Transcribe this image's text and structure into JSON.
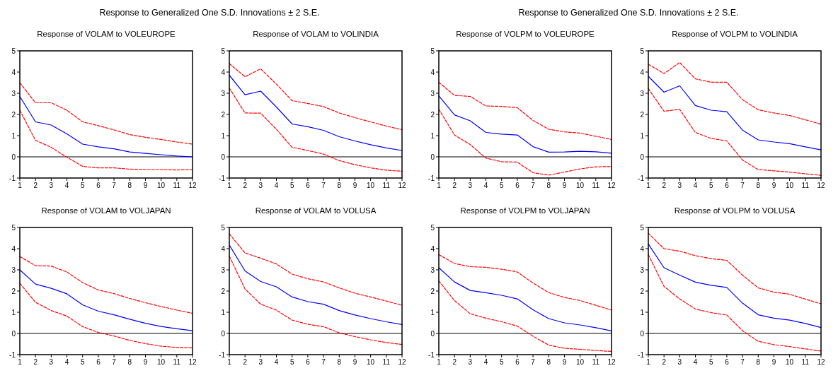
{
  "chart_data": [
    {
      "type": "line",
      "title": "Response of VOLAM to VOLEUROPE",
      "annotations": [
        "Response to Generalized One S.D. Innovations ± 2 S.E."
      ],
      "x": [
        1,
        2,
        3,
        4,
        5,
        6,
        7,
        8,
        9,
        10,
        11,
        12
      ],
      "xlim": [
        1,
        12
      ],
      "xticks": [
        1,
        2,
        3,
        4,
        5,
        6,
        7,
        8,
        9,
        10,
        11,
        12
      ],
      "ylim": [
        -1,
        5
      ],
      "yticks": [
        -1,
        0,
        1,
        2,
        3,
        4,
        5
      ],
      "ref_lines": [
        {
          "axis": "y",
          "value": 0,
          "color": "#000000"
        }
      ],
      "series": [
        {
          "color": "#0000ff",
          "line_style": "solid",
          "values": [
            2.85,
            1.65,
            1.5,
            1.08,
            0.6,
            0.47,
            0.38,
            0.23,
            0.16,
            0.1,
            0.04,
            0.0
          ]
        },
        {
          "color": "#ff0000",
          "line_style": "dashed",
          "values": [
            3.5,
            2.55,
            2.55,
            2.2,
            1.65,
            1.47,
            1.27,
            1.05,
            0.92,
            0.82,
            0.7,
            0.6
          ]
        },
        {
          "color": "#ff0000",
          "line_style": "dashed",
          "values": [
            2.2,
            0.78,
            0.45,
            -0.02,
            -0.45,
            -0.52,
            -0.52,
            -0.58,
            -0.6,
            -0.6,
            -0.62,
            -0.6
          ]
        }
      ]
    },
    {
      "type": "line",
      "title": "Response of VOLAM to VOLINDIA",
      "x": [
        1,
        2,
        3,
        4,
        5,
        6,
        7,
        8,
        9,
        10,
        11,
        12
      ],
      "xlim": [
        1,
        12
      ],
      "xticks": [
        1,
        2,
        3,
        4,
        5,
        6,
        7,
        8,
        9,
        10,
        11,
        12
      ],
      "ylim": [
        -1,
        5
      ],
      "yticks": [
        -1,
        0,
        1,
        2,
        3,
        4,
        5
      ],
      "ref_lines": [
        {
          "axis": "y",
          "value": 0,
          "color": "#000000"
        }
      ],
      "series": [
        {
          "color": "#0000ff",
          "line_style": "solid",
          "values": [
            3.85,
            2.93,
            3.1,
            2.35,
            1.55,
            1.42,
            1.25,
            0.95,
            0.75,
            0.57,
            0.42,
            0.3
          ]
        },
        {
          "color": "#ff0000",
          "line_style": "dashed",
          "values": [
            4.4,
            3.78,
            4.15,
            3.43,
            2.65,
            2.52,
            2.37,
            2.07,
            1.85,
            1.65,
            1.45,
            1.28
          ]
        },
        {
          "color": "#ff0000",
          "line_style": "dashed",
          "values": [
            3.25,
            2.07,
            2.06,
            1.3,
            0.45,
            0.3,
            0.13,
            -0.18,
            -0.37,
            -0.52,
            -0.63,
            -0.68
          ]
        }
      ]
    },
    {
      "type": "line",
      "title": "Response of VOLPM to VOLEUROPE",
      "annotations": [
        "Response to Generalized One S.D. Innovations ± 2 S.E."
      ],
      "x": [
        1,
        2,
        3,
        4,
        5,
        6,
        7,
        8,
        9,
        10,
        11,
        12
      ],
      "xlim": [
        1,
        12
      ],
      "xticks": [
        1,
        2,
        3,
        4,
        5,
        6,
        7,
        8,
        9,
        10,
        11,
        12
      ],
      "ylim": [
        -1,
        5
      ],
      "yticks": [
        -1,
        0,
        1,
        2,
        3,
        4,
        5
      ],
      "ref_lines": [
        {
          "axis": "y",
          "value": 0,
          "color": "#000000"
        }
      ],
      "series": [
        {
          "color": "#0000ff",
          "line_style": "solid",
          "values": [
            2.88,
            1.98,
            1.7,
            1.15,
            1.07,
            1.03,
            0.48,
            0.22,
            0.23,
            0.26,
            0.24,
            0.17
          ]
        },
        {
          "color": "#ff0000",
          "line_style": "dashed",
          "values": [
            3.52,
            2.9,
            2.85,
            2.4,
            2.38,
            2.32,
            1.72,
            1.3,
            1.18,
            1.12,
            0.97,
            0.82
          ]
        },
        {
          "color": "#ff0000",
          "line_style": "dashed",
          "values": [
            2.25,
            1.03,
            0.58,
            -0.06,
            -0.23,
            -0.25,
            -0.75,
            -0.86,
            -0.72,
            -0.57,
            -0.47,
            -0.46
          ]
        }
      ]
    },
    {
      "type": "line",
      "title": "Response of VOLPM to VOLINDIA",
      "x": [
        1,
        2,
        3,
        4,
        5,
        6,
        7,
        8,
        9,
        10,
        11,
        12
      ],
      "xlim": [
        1,
        12
      ],
      "xticks": [
        1,
        2,
        3,
        4,
        5,
        6,
        7,
        8,
        9,
        10,
        11,
        12
      ],
      "ylim": [
        -1,
        5
      ],
      "yticks": [
        -1,
        0,
        1,
        2,
        3,
        4,
        5
      ],
      "ref_lines": [
        {
          "axis": "y",
          "value": 0,
          "color": "#000000"
        }
      ],
      "series": [
        {
          "color": "#0000ff",
          "line_style": "solid",
          "values": [
            3.8,
            3.05,
            3.35,
            2.42,
            2.2,
            2.13,
            1.26,
            0.8,
            0.7,
            0.62,
            0.47,
            0.33
          ]
        },
        {
          "color": "#ff0000",
          "line_style": "dashed",
          "values": [
            4.37,
            3.93,
            4.45,
            3.68,
            3.52,
            3.52,
            2.7,
            2.22,
            2.07,
            1.95,
            1.75,
            1.54
          ]
        },
        {
          "color": "#ff0000",
          "line_style": "dashed",
          "values": [
            3.22,
            2.15,
            2.24,
            1.15,
            0.87,
            0.75,
            -0.15,
            -0.6,
            -0.66,
            -0.72,
            -0.8,
            -0.87
          ]
        }
      ]
    },
    {
      "type": "line",
      "title": "Response of VOLAM to VOLJAPAN",
      "x": [
        1,
        2,
        3,
        4,
        5,
        6,
        7,
        8,
        9,
        10,
        11,
        12
      ],
      "xlim": [
        1,
        12
      ],
      "xticks": [
        1,
        2,
        3,
        4,
        5,
        6,
        7,
        8,
        9,
        10,
        11,
        12
      ],
      "ylim": [
        -1,
        5
      ],
      "yticks": [
        -1,
        0,
        1,
        2,
        3,
        4,
        5
      ],
      "ref_lines": [
        {
          "axis": "y",
          "value": 0,
          "color": "#000000"
        }
      ],
      "series": [
        {
          "color": "#0000ff",
          "line_style": "solid",
          "values": [
            3.0,
            2.33,
            2.13,
            1.87,
            1.35,
            1.05,
            0.88,
            0.67,
            0.48,
            0.33,
            0.22,
            0.13
          ]
        },
        {
          "color": "#ff0000",
          "line_style": "dashed",
          "values": [
            3.63,
            3.2,
            3.18,
            2.9,
            2.4,
            2.05,
            1.88,
            1.65,
            1.45,
            1.27,
            1.1,
            0.95
          ]
        },
        {
          "color": "#ff0000",
          "line_style": "dashed",
          "values": [
            2.37,
            1.47,
            1.08,
            0.82,
            0.32,
            0.05,
            -0.12,
            -0.33,
            -0.48,
            -0.6,
            -0.66,
            -0.68
          ]
        }
      ]
    },
    {
      "type": "line",
      "title": "Response of VOLAM to VOLUSA",
      "x": [
        1,
        2,
        3,
        4,
        5,
        6,
        7,
        8,
        9,
        10,
        11,
        12
      ],
      "xlim": [
        1,
        12
      ],
      "xticks": [
        1,
        2,
        3,
        4,
        5,
        6,
        7,
        8,
        9,
        10,
        11,
        12
      ],
      "ylim": [
        -1,
        5
      ],
      "yticks": [
        -1,
        0,
        1,
        2,
        3,
        4,
        5
      ],
      "ref_lines": [
        {
          "axis": "y",
          "value": 0,
          "color": "#000000"
        }
      ],
      "series": [
        {
          "color": "#0000ff",
          "line_style": "solid",
          "values": [
            4.17,
            2.95,
            2.45,
            2.2,
            1.72,
            1.5,
            1.38,
            1.08,
            0.87,
            0.7,
            0.55,
            0.42
          ]
        },
        {
          "color": "#ff0000",
          "line_style": "dashed",
          "values": [
            4.7,
            3.8,
            3.55,
            3.28,
            2.8,
            2.58,
            2.43,
            2.15,
            1.9,
            1.72,
            1.53,
            1.33
          ]
        },
        {
          "color": "#ff0000",
          "line_style": "dashed",
          "values": [
            3.65,
            2.1,
            1.38,
            1.1,
            0.63,
            0.43,
            0.32,
            0.03,
            -0.15,
            -0.3,
            -0.43,
            -0.52
          ]
        }
      ]
    },
    {
      "type": "line",
      "title": "Response of VOLPM to VOLJAPAN",
      "x": [
        1,
        2,
        3,
        4,
        5,
        6,
        7,
        8,
        9,
        10,
        11,
        12
      ],
      "xlim": [
        1,
        12
      ],
      "xticks": [
        1,
        2,
        3,
        4,
        5,
        6,
        7,
        8,
        9,
        10,
        11,
        12
      ],
      "ylim": [
        -1,
        5
      ],
      "yticks": [
        -1,
        0,
        1,
        2,
        3,
        4,
        5
      ],
      "ref_lines": [
        {
          "axis": "y",
          "value": 0,
          "color": "#000000"
        }
      ],
      "series": [
        {
          "color": "#0000ff",
          "line_style": "solid",
          "values": [
            3.1,
            2.43,
            2.03,
            1.92,
            1.8,
            1.63,
            1.12,
            0.7,
            0.5,
            0.4,
            0.27,
            0.12
          ]
        },
        {
          "color": "#ff0000",
          "line_style": "dashed",
          "values": [
            3.72,
            3.3,
            3.15,
            3.12,
            3.03,
            2.9,
            2.38,
            1.93,
            1.7,
            1.55,
            1.33,
            1.1
          ]
        },
        {
          "color": "#ff0000",
          "line_style": "dashed",
          "values": [
            2.48,
            1.55,
            0.93,
            0.72,
            0.55,
            0.35,
            -0.13,
            -0.55,
            -0.7,
            -0.75,
            -0.8,
            -0.85
          ]
        }
      ]
    },
    {
      "type": "line",
      "title": "Response of VOLPM to VOLUSA",
      "x": [
        1,
        2,
        3,
        4,
        5,
        6,
        7,
        8,
        9,
        10,
        11,
        12
      ],
      "xlim": [
        1,
        12
      ],
      "xticks": [
        1,
        2,
        3,
        4,
        5,
        6,
        7,
        8,
        9,
        10,
        11,
        12
      ],
      "ylim": [
        -1,
        5
      ],
      "yticks": [
        -1,
        0,
        1,
        2,
        3,
        4,
        5
      ],
      "ref_lines": [
        {
          "axis": "y",
          "value": 0,
          "color": "#000000"
        }
      ],
      "series": [
        {
          "color": "#0000ff",
          "line_style": "solid",
          "values": [
            4.22,
            3.1,
            2.75,
            2.42,
            2.27,
            2.17,
            1.43,
            0.88,
            0.72,
            0.63,
            0.47,
            0.28
          ]
        },
        {
          "color": "#ff0000",
          "line_style": "dashed",
          "values": [
            4.73,
            4.0,
            3.88,
            3.67,
            3.53,
            3.45,
            2.75,
            2.15,
            1.95,
            1.85,
            1.62,
            1.4
          ]
        },
        {
          "color": "#ff0000",
          "line_style": "dashed",
          "values": [
            3.72,
            2.22,
            1.63,
            1.15,
            0.98,
            0.87,
            0.13,
            -0.37,
            -0.53,
            -0.62,
            -0.73,
            -0.83
          ]
        }
      ]
    }
  ]
}
